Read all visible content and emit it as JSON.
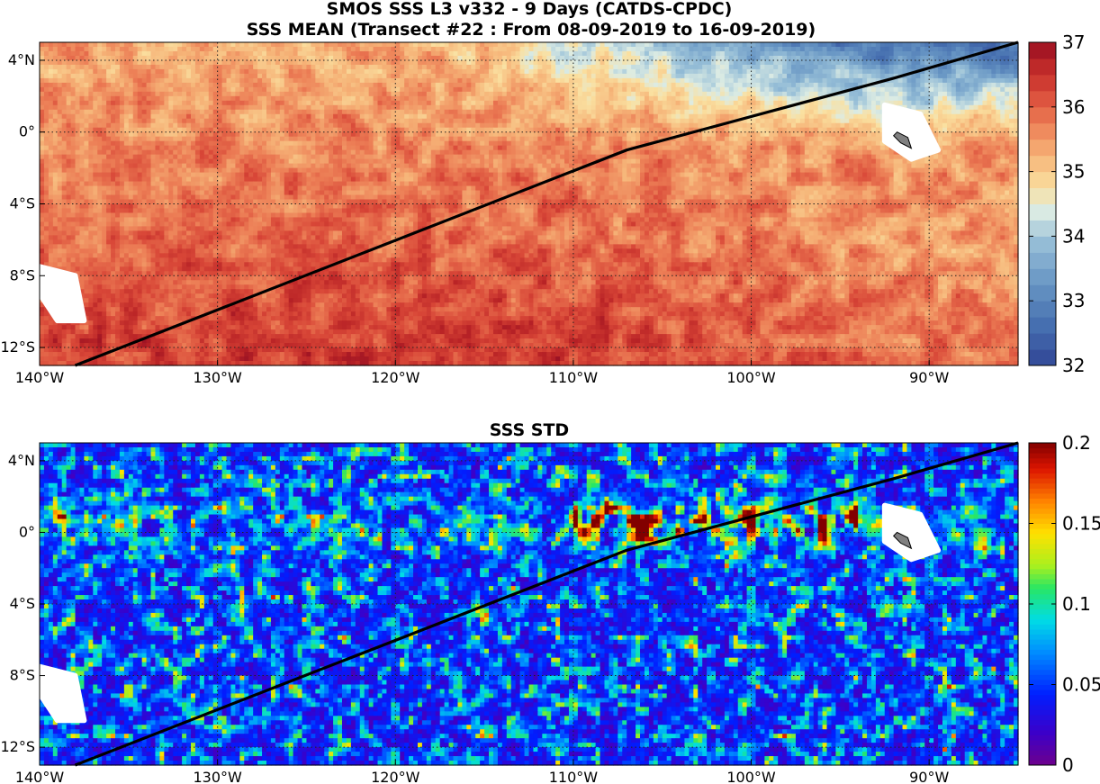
{
  "chart_data": [
    {
      "type": "heatmap",
      "title": "SMOS SSS L3 v332 - 9 Days (CATDS-CPDC)",
      "subtitle": "SSS MEAN (Transect #22 : From 08-09-2019 to 16-09-2019)",
      "x_range": [
        -140,
        -85
      ],
      "y_range": [
        -13,
        5
      ],
      "x_ticks": [
        -140,
        -130,
        -120,
        -110,
        -100,
        -90
      ],
      "x_tick_labels": [
        "140°W",
        "130°W",
        "120°W",
        "110°W",
        "100°W",
        "90°W"
      ],
      "y_ticks": [
        4,
        0,
        -4,
        -8,
        -12
      ],
      "y_tick_labels": [
        "4°N",
        "0°",
        "4°S",
        "8°S",
        "12°S"
      ],
      "grid": true,
      "colorbar": {
        "min": 32,
        "max": 37,
        "ticks": [
          32,
          33,
          34,
          35,
          36,
          37
        ],
        "tick_labels": [
          "32",
          "33",
          "34",
          "35",
          "36",
          "37"
        ],
        "colormap": "blue-white-red (salinity)"
      },
      "field_pattern": "fresh (~33) in the north-east near 4°N–0° east of 105°W, saltier (~35.5–36.5) toward the south-west; land/no-data masks near 90°W 0° and 138°W 9°S",
      "transect_line": {
        "lon": [
          -138,
          -107,
          -92,
          -85
        ],
        "lat": [
          -13,
          -1,
          3,
          5
        ],
        "color": "#000000"
      }
    },
    {
      "type": "heatmap",
      "title": "SSS STD",
      "x_range": [
        -140,
        -85
      ],
      "y_range": [
        -13,
        5
      ],
      "x_ticks": [
        -140,
        -130,
        -120,
        -110,
        -100,
        -90
      ],
      "x_tick_labels": [
        "140°W",
        "130°W",
        "120°W",
        "110°W",
        "100°W",
        "90°W"
      ],
      "y_ticks": [
        4,
        0,
        -4,
        -8,
        -12
      ],
      "y_tick_labels": [
        "4°N",
        "0°",
        "4°S",
        "8°S",
        "12°S"
      ],
      "grid": true,
      "colorbar": {
        "min": 0,
        "max": 0.2,
        "ticks": [
          0,
          0.05,
          0.1,
          0.15,
          0.2
        ],
        "tick_labels": [
          "0",
          "0.05",
          "0.1",
          "0.15",
          "0.2"
        ],
        "colormap": "jet"
      },
      "field_pattern": "mostly low (0–0.05) speckled noise with higher values (~0.2) in patches along the equator between 110°W and 95°W",
      "transect_line": {
        "lon": [
          -138,
          -107,
          -92,
          -85
        ],
        "lat": [
          -13,
          -1,
          3,
          5
        ],
        "color": "#000000"
      }
    }
  ],
  "masks": [
    {
      "name": "galapagos",
      "lon": [
        -92.5,
        -90.5,
        -89.5,
        -91,
        -92.5
      ],
      "lat": [
        1.5,
        1,
        -1,
        -1.5,
        -0.5
      ]
    },
    {
      "name": "southwest-gap",
      "lon": [
        -140,
        -138,
        -137.5,
        -139,
        -140
      ],
      "lat": [
        -7.5,
        -8,
        -10.5,
        -10.5,
        -9
      ]
    }
  ],
  "land_color": "#808080"
}
